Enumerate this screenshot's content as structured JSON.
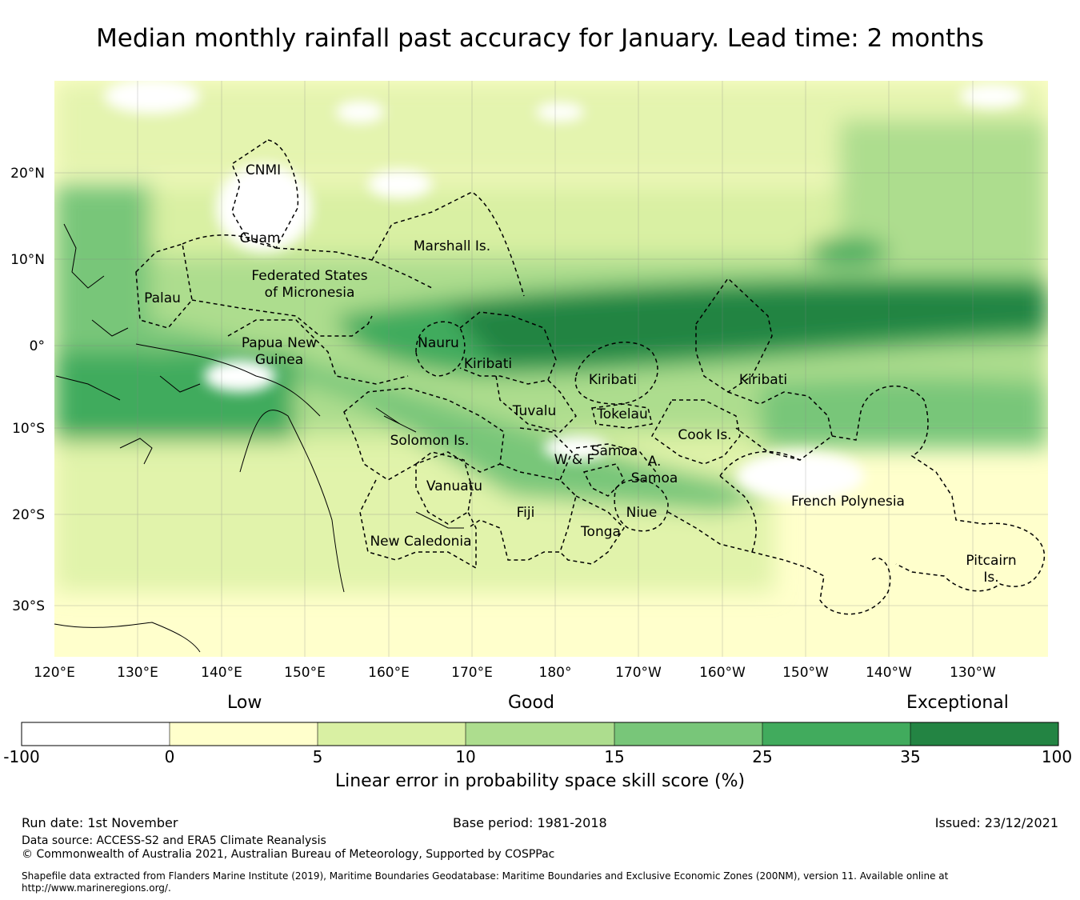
{
  "title": "Median monthly rainfall past accuracy for January. Lead time: 2 months",
  "map": {
    "lon_labels": [
      "120°E",
      "130°E",
      "140°E",
      "150°E",
      "160°E",
      "170°E",
      "180°",
      "170°W",
      "160°W",
      "150°W",
      "140°W",
      "130°W"
    ],
    "lat_labels": [
      "20°N",
      "10°N",
      "0°",
      "10°S",
      "20°S",
      "30°S"
    ],
    "regions": [
      {
        "name": "CNMI",
        "lines": [
          "CNMI"
        ]
      },
      {
        "name": "Guam",
        "lines": [
          "Guam"
        ]
      },
      {
        "name": "Marshall Is.",
        "lines": [
          "Marshall Is."
        ]
      },
      {
        "name": "Federated States of Micronesia",
        "lines": [
          "Federated States",
          "of Micronesia"
        ]
      },
      {
        "name": "Palau",
        "lines": [
          "Palau"
        ]
      },
      {
        "name": "Papua New Guinea",
        "lines": [
          "Papua New",
          "Guinea"
        ]
      },
      {
        "name": "Nauru",
        "lines": [
          "Nauru"
        ]
      },
      {
        "name": "Kiribati (Gilbert)",
        "lines": [
          "Kiribati"
        ]
      },
      {
        "name": "Kiribati (Phoenix)",
        "lines": [
          "Kiribati"
        ]
      },
      {
        "name": "Kiribati (Line)",
        "lines": [
          "Kiribati"
        ]
      },
      {
        "name": "Tuvalu",
        "lines": [
          "Tuvalu"
        ]
      },
      {
        "name": "Tokelau",
        "lines": [
          "Tokelau"
        ]
      },
      {
        "name": "Solomon Is.",
        "lines": [
          "Solomon Is."
        ]
      },
      {
        "name": "Cook Is.",
        "lines": [
          "Cook Is."
        ]
      },
      {
        "name": "Samoa",
        "lines": [
          "Samoa"
        ]
      },
      {
        "name": "W & F",
        "lines": [
          "W & F"
        ]
      },
      {
        "name": "A. Samoa",
        "lines": [
          "A.",
          "Samoa"
        ]
      },
      {
        "name": "Vanuatu",
        "lines": [
          "Vanuatu"
        ]
      },
      {
        "name": "Fiji",
        "lines": [
          "Fiji"
        ]
      },
      {
        "name": "Niue",
        "lines": [
          "Niue"
        ]
      },
      {
        "name": "Tonga",
        "lines": [
          "Tonga"
        ]
      },
      {
        "name": "New Caledonia",
        "lines": [
          "New Caledonia"
        ]
      },
      {
        "name": "French Polynesia",
        "lines": [
          "French Polynesia"
        ]
      },
      {
        "name": "Pitcairn Is.",
        "lines": [
          "Pitcairn",
          "Is."
        ]
      }
    ]
  },
  "legend": {
    "categories": [
      "Low",
      "Good",
      "Exceptional"
    ],
    "ticks": [
      "-100",
      "0",
      "5",
      "10",
      "15",
      "25",
      "35",
      "100"
    ],
    "colors": [
      "#ffffff",
      "#ffffcc",
      "#d9f0a3",
      "#addd8e",
      "#78c679",
      "#41ab5d",
      "#238443"
    ],
    "title": "Linear error in probability space skill score (%)"
  },
  "footer": {
    "run_date": "Run date: 1st November",
    "base_period": "Base period: 1981-2018",
    "issued": "Issued: 23/12/2021",
    "data_source": "Data source: ACCESS-S2 and ERA5 Climate Reanalysis",
    "copyright": "© Commonwealth of Australia 2021, Australian Bureau of Meteorology, Supported by COSPPac",
    "shapefile_1": "Shapefile data extracted from Flanders Marine Institute (2019), Maritime Boundaries Geodatabase: Maritime Boundaries and Exclusive Economic Zones (200NM), version 11. Available online at",
    "shapefile_2": "http://www.marineregions.org/."
  }
}
